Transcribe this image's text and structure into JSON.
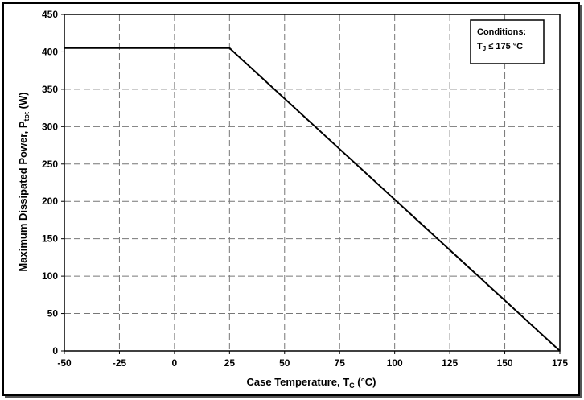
{
  "chart_data": {
    "type": "line",
    "x": [
      -50,
      25,
      175
    ],
    "series": [
      {
        "values": [
          405,
          405,
          0
        ]
      }
    ],
    "xlim": [
      -50,
      175
    ],
    "ylim": [
      0,
      450
    ],
    "xticks": [
      -50,
      -25,
      0,
      25,
      50,
      75,
      100,
      125,
      150,
      175
    ],
    "yticks": [
      0,
      50,
      100,
      150,
      200,
      250,
      300,
      350,
      400,
      450
    ],
    "xlabel": {
      "main": "Case Temperature, T",
      "sub": "C",
      "unit": " (°C)"
    },
    "ylabel": {
      "main": "Maximum Dissipated Power, P",
      "sub": "tot",
      "unit": " (W)"
    },
    "grid": true,
    "annotation": {
      "line1": "Conditions:",
      "line2_main": "T",
      "line2_sub": "J",
      "line2_rest": " ≤ 175 °C"
    },
    "colors": {
      "line": "#000000",
      "grid": "#777777"
    }
  }
}
